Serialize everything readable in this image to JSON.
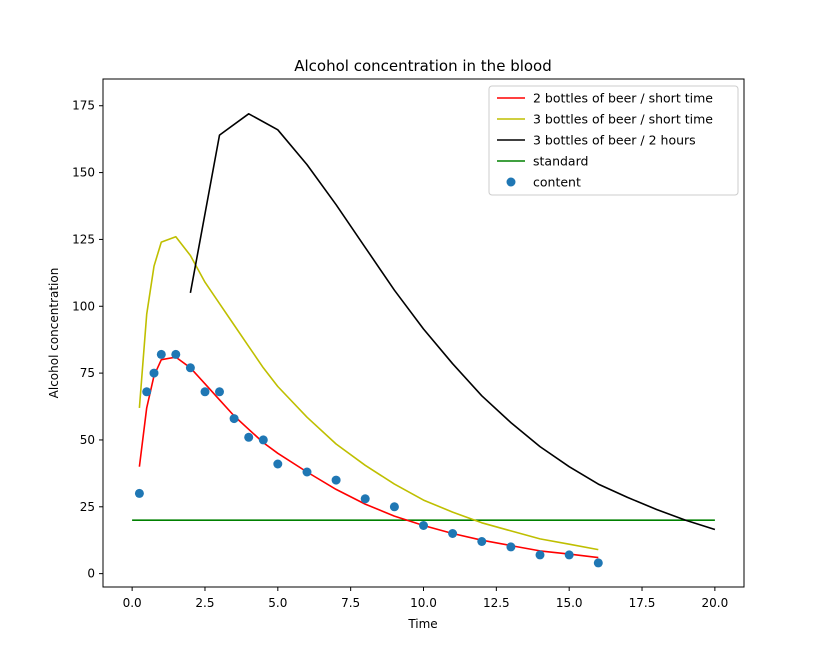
{
  "chart_data": {
    "type": "line",
    "title": "Alcohol concentration in the blood",
    "xlabel": "Time",
    "ylabel": "Alcohol concentration",
    "xlim": [
      -1,
      21
    ],
    "ylim": [
      -5,
      185
    ],
    "xticks": [
      0,
      2.5,
      5,
      7.5,
      10,
      12.5,
      15,
      17.5,
      20
    ],
    "xtick_labels": [
      "0.0",
      "2.5",
      "5.0",
      "7.5",
      "10.0",
      "12.5",
      "15.0",
      "17.5",
      "20.0"
    ],
    "yticks": [
      0,
      25,
      50,
      75,
      100,
      125,
      150,
      175
    ],
    "ytick_labels": [
      "0",
      "25",
      "50",
      "75",
      "100",
      "125",
      "150",
      "175"
    ],
    "legend_position": "top-right",
    "series": [
      {
        "name": "2 bottles of beer / short time",
        "kind": "line",
        "color": "#ff0000",
        "x": [
          0.25,
          0.5,
          0.75,
          1.0,
          1.5,
          2.0,
          2.5,
          3.0,
          3.5,
          4.0,
          4.5,
          5.0,
          6.0,
          7.0,
          8.0,
          9.0,
          10.0,
          11.0,
          12.0,
          13.0,
          14.0,
          15.0,
          16.0
        ],
        "y": [
          40,
          62,
          74,
          80,
          81,
          77,
          71,
          65,
          59,
          54,
          49,
          45,
          38,
          31.5,
          26,
          21.5,
          18,
          15,
          12.5,
          10.5,
          8.5,
          7.3,
          6
        ]
      },
      {
        "name": "3 bottles of beer / short time",
        "kind": "line",
        "color": "#bfbf00",
        "x": [
          0.25,
          0.5,
          0.75,
          1.0,
          1.5,
          2.0,
          2.5,
          3.0,
          3.5,
          4.0,
          4.5,
          5.0,
          6.0,
          7.0,
          8.0,
          9.0,
          10.0,
          11.0,
          12.0,
          13.0,
          14.0,
          15.0,
          16.0
        ],
        "y": [
          62,
          97,
          115,
          124,
          126,
          119,
          109,
          101,
          93,
          85,
          77,
          70,
          58.5,
          48.5,
          40.5,
          33.5,
          27.5,
          23,
          19,
          16,
          13,
          11,
          9
        ]
      },
      {
        "name": "3 bottles of beer / 2 hours",
        "kind": "line",
        "color": "#000000",
        "x": [
          2,
          3,
          4,
          5,
          6,
          7,
          8,
          9,
          10,
          11,
          12,
          13,
          14,
          15,
          16,
          17,
          18,
          19,
          20
        ],
        "y": [
          105,
          164,
          172,
          166,
          153,
          138,
          122,
          106,
          91.5,
          78.5,
          66.5,
          56.5,
          47.5,
          40,
          33.5,
          28.5,
          24,
          20,
          16.5
        ]
      },
      {
        "name": "standard",
        "kind": "line",
        "color": "#008000",
        "x": [
          0,
          20
        ],
        "y": [
          20,
          20
        ]
      },
      {
        "name": "content",
        "kind": "scatter",
        "color": "#1f77b4",
        "x": [
          0.25,
          0.5,
          0.75,
          1.0,
          1.5,
          2.0,
          2.5,
          3.0,
          3.5,
          4.0,
          4.5,
          5.0,
          6.0,
          7.0,
          8.0,
          9.0,
          10.0,
          11.0,
          12.0,
          13.0,
          14.0,
          15.0,
          16.0
        ],
        "y": [
          30,
          68,
          75,
          82,
          82,
          77,
          68,
          68,
          58,
          51,
          50,
          41,
          38,
          35,
          28,
          25,
          18,
          15,
          12,
          10,
          7,
          7,
          4
        ]
      }
    ]
  }
}
